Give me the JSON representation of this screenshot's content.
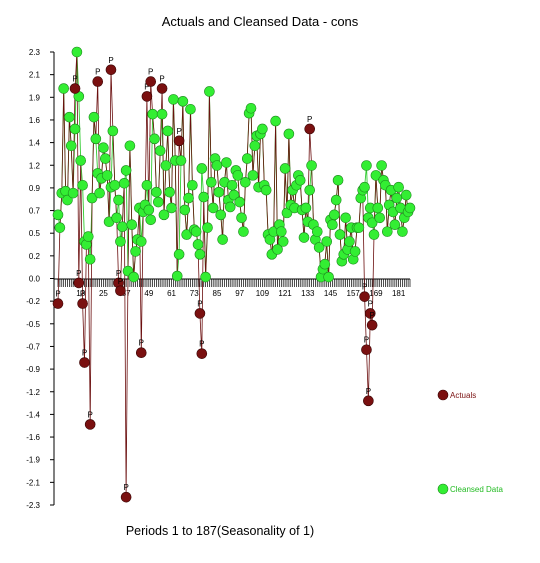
{
  "chart_data": {
    "type": "line",
    "title": "Actuals and Cleansed Data - cons",
    "xlabel": "Periods 1 to 187(Seasonality of 1)",
    "ylabel": "",
    "xlim": [
      1,
      187
    ],
    "ylim": [
      -2.3,
      2.3
    ],
    "y_ticks": [
      "2.3",
      "2.1",
      "1.9",
      "1.6",
      "1.4",
      "1.2",
      "0.9",
      "0.7",
      "0.5",
      "0.2",
      "0.0",
      "-0.2",
      "-0.5",
      "-0.7",
      "-0.9",
      "-1.2",
      "-1.4",
      "-1.6",
      "-1.9",
      "-2.1",
      "-2.3"
    ],
    "x_ticks": [
      "13",
      "25",
      "37",
      "49",
      "61",
      "73",
      "85",
      "97",
      "109",
      "121",
      "133",
      "145",
      "157",
      "169",
      "181"
    ],
    "outlier_marker": "P",
    "legend_position": "right",
    "grid": false,
    "series": [
      {
        "name": "Actuals",
        "color": "#7a1010",
        "points": [
          [
            1,
            -0.25
          ],
          [
            10,
            1.93
          ],
          [
            12,
            -0.04
          ],
          [
            14,
            -0.25
          ],
          [
            15,
            -0.85
          ],
          [
            18,
            -1.48
          ],
          [
            22,
            2.0
          ],
          [
            29,
            2.12
          ],
          [
            33,
            -0.04
          ],
          [
            34,
            -0.12
          ],
          [
            37,
            -2.22
          ],
          [
            45,
            -0.75
          ],
          [
            48,
            1.85
          ],
          [
            50,
            2.0
          ],
          [
            56,
            1.93
          ],
          [
            65,
            1.4
          ],
          [
            76,
            -0.35
          ],
          [
            77,
            -0.76
          ],
          [
            134,
            1.52
          ],
          [
            163,
            -0.18
          ],
          [
            164,
            -0.72
          ],
          [
            165,
            -1.24
          ],
          [
            166,
            -0.35
          ],
          [
            167,
            -0.47
          ]
        ]
      },
      {
        "name": "Cleansed Data",
        "color": "#33ee33",
        "points": [
          [
            1,
            0.65
          ],
          [
            2,
            0.52
          ],
          [
            3,
            0.87
          ],
          [
            4,
            1.93
          ],
          [
            5,
            0.89
          ],
          [
            6,
            0.8
          ],
          [
            7,
            1.64
          ],
          [
            8,
            1.35
          ],
          [
            9,
            0.87
          ],
          [
            10,
            1.52
          ],
          [
            11,
            2.3
          ],
          [
            12,
            1.85
          ],
          [
            13,
            1.2
          ],
          [
            14,
            0.95
          ],
          [
            15,
            0.38
          ],
          [
            16,
            0.35
          ],
          [
            17,
            0.43
          ],
          [
            18,
            0.2
          ],
          [
            19,
            0.82
          ],
          [
            20,
            1.64
          ],
          [
            21,
            1.42
          ],
          [
            22,
            1.07
          ],
          [
            23,
            0.87
          ],
          [
            24,
            1.02
          ],
          [
            25,
            1.33
          ],
          [
            26,
            1.22
          ],
          [
            27,
            1.05
          ],
          [
            28,
            0.58
          ],
          [
            29,
            0.93
          ],
          [
            30,
            1.5
          ],
          [
            31,
            0.95
          ],
          [
            32,
            0.62
          ],
          [
            33,
            0.8
          ],
          [
            34,
            0.38
          ],
          [
            35,
            0.53
          ],
          [
            36,
            0.97
          ],
          [
            37,
            1.1
          ],
          [
            38,
            0.08
          ],
          [
            39,
            1.35
          ],
          [
            40,
            0.55
          ],
          [
            41,
            0.02
          ],
          [
            42,
            0.28
          ],
          [
            43,
            0.4
          ],
          [
            44,
            0.72
          ],
          [
            45,
            0.38
          ],
          [
            46,
            0.68
          ],
          [
            47,
            0.75
          ],
          [
            48,
            0.95
          ],
          [
            49,
            0.7
          ],
          [
            50,
            0.6
          ],
          [
            51,
            1.67
          ],
          [
            52,
            1.42
          ],
          [
            53,
            0.88
          ],
          [
            54,
            0.78
          ],
          [
            55,
            1.3
          ],
          [
            56,
            1.67
          ],
          [
            57,
            0.65
          ],
          [
            58,
            1.15
          ],
          [
            59,
            1.5
          ],
          [
            60,
            0.88
          ],
          [
            61,
            0.72
          ],
          [
            62,
            1.82
          ],
          [
            63,
            1.2
          ],
          [
            64,
            0.03
          ],
          [
            65,
            0.25
          ],
          [
            66,
            1.2
          ],
          [
            67,
            1.8
          ],
          [
            68,
            0.7
          ],
          [
            69,
            0.45
          ],
          [
            70,
            0.82
          ],
          [
            71,
            1.72
          ],
          [
            72,
            0.95
          ],
          [
            73,
            0.5
          ],
          [
            74,
            0.48
          ],
          [
            75,
            0.35
          ],
          [
            76,
            0.25
          ],
          [
            77,
            1.12
          ],
          [
            78,
            0.83
          ],
          [
            79,
            0.02
          ],
          [
            80,
            0.52
          ],
          [
            81,
            1.9
          ],
          [
            82,
            0.98
          ],
          [
            83,
            0.72
          ],
          [
            84,
            1.22
          ],
          [
            85,
            1.15
          ],
          [
            86,
            0.88
          ],
          [
            87,
            0.65
          ],
          [
            88,
            0.4
          ],
          [
            89,
            0.98
          ],
          [
            90,
            1.18
          ],
          [
            91,
            0.8
          ],
          [
            92,
            0.73
          ],
          [
            93,
            0.95
          ],
          [
            94,
            0.85
          ],
          [
            95,
            1.1
          ],
          [
            96,
            1.05
          ],
          [
            97,
            0.78
          ],
          [
            98,
            0.62
          ],
          [
            99,
            0.48
          ],
          [
            100,
            0.98
          ],
          [
            101,
            1.22
          ],
          [
            102,
            1.68
          ],
          [
            103,
            1.73
          ],
          [
            104,
            1.05
          ],
          [
            105,
            1.35
          ],
          [
            106,
            1.45
          ],
          [
            107,
            0.93
          ],
          [
            108,
            1.47
          ],
          [
            109,
            1.52
          ],
          [
            110,
            0.95
          ],
          [
            111,
            0.9
          ],
          [
            112,
            0.45
          ],
          [
            113,
            0.4
          ],
          [
            114,
            0.25
          ],
          [
            115,
            0.48
          ],
          [
            116,
            1.6
          ],
          [
            117,
            0.3
          ],
          [
            118,
            0.55
          ],
          [
            119,
            0.48
          ],
          [
            120,
            0.38
          ],
          [
            121,
            1.12
          ],
          [
            122,
            0.67
          ],
          [
            123,
            1.47
          ],
          [
            124,
            0.75
          ],
          [
            125,
            0.9
          ],
          [
            126,
            0.72
          ],
          [
            127,
            0.95
          ],
          [
            128,
            1.05
          ],
          [
            129,
            1.0
          ],
          [
            130,
            0.7
          ],
          [
            131,
            0.42
          ],
          [
            132,
            0.72
          ],
          [
            133,
            0.58
          ],
          [
            134,
            0.9
          ],
          [
            135,
            1.15
          ],
          [
            136,
            0.55
          ],
          [
            137,
            0.4
          ],
          [
            138,
            0.48
          ],
          [
            139,
            0.32
          ],
          [
            140,
            0.02
          ],
          [
            141,
            0.1
          ],
          [
            142,
            0.15
          ],
          [
            143,
            0.38
          ],
          [
            144,
            0.02
          ],
          [
            145,
            0.6
          ],
          [
            146,
            0.55
          ],
          [
            147,
            0.65
          ],
          [
            148,
            0.8
          ],
          [
            149,
            1.0
          ],
          [
            150,
            0.45
          ],
          [
            151,
            0.18
          ],
          [
            152,
            0.25
          ],
          [
            153,
            0.62
          ],
          [
            154,
            0.3
          ],
          [
            155,
            0.38
          ],
          [
            156,
            0.52
          ],
          [
            157,
            0.2
          ],
          [
            158,
            0.28
          ],
          [
            159,
            0.52
          ],
          [
            160,
            0.52
          ],
          [
            161,
            0.82
          ],
          [
            162,
            0.9
          ],
          [
            163,
            0.93
          ],
          [
            164,
            1.15
          ],
          [
            165,
            0.62
          ],
          [
            166,
            0.72
          ],
          [
            167,
            0.57
          ],
          [
            168,
            0.45
          ],
          [
            169,
            1.05
          ],
          [
            170,
            0.72
          ],
          [
            171,
            0.62
          ],
          [
            172,
            1.15
          ],
          [
            173,
            1.0
          ],
          [
            174,
            0.95
          ],
          [
            175,
            0.48
          ],
          [
            176,
            0.75
          ],
          [
            177,
            0.9
          ],
          [
            178,
            0.68
          ],
          [
            179,
            0.55
          ],
          [
            180,
            0.82
          ],
          [
            181,
            0.93
          ],
          [
            182,
            0.72
          ],
          [
            183,
            0.48
          ],
          [
            184,
            0.62
          ],
          [
            185,
            0.85
          ],
          [
            186,
            0.68
          ],
          [
            187,
            0.72
          ]
        ]
      }
    ]
  }
}
